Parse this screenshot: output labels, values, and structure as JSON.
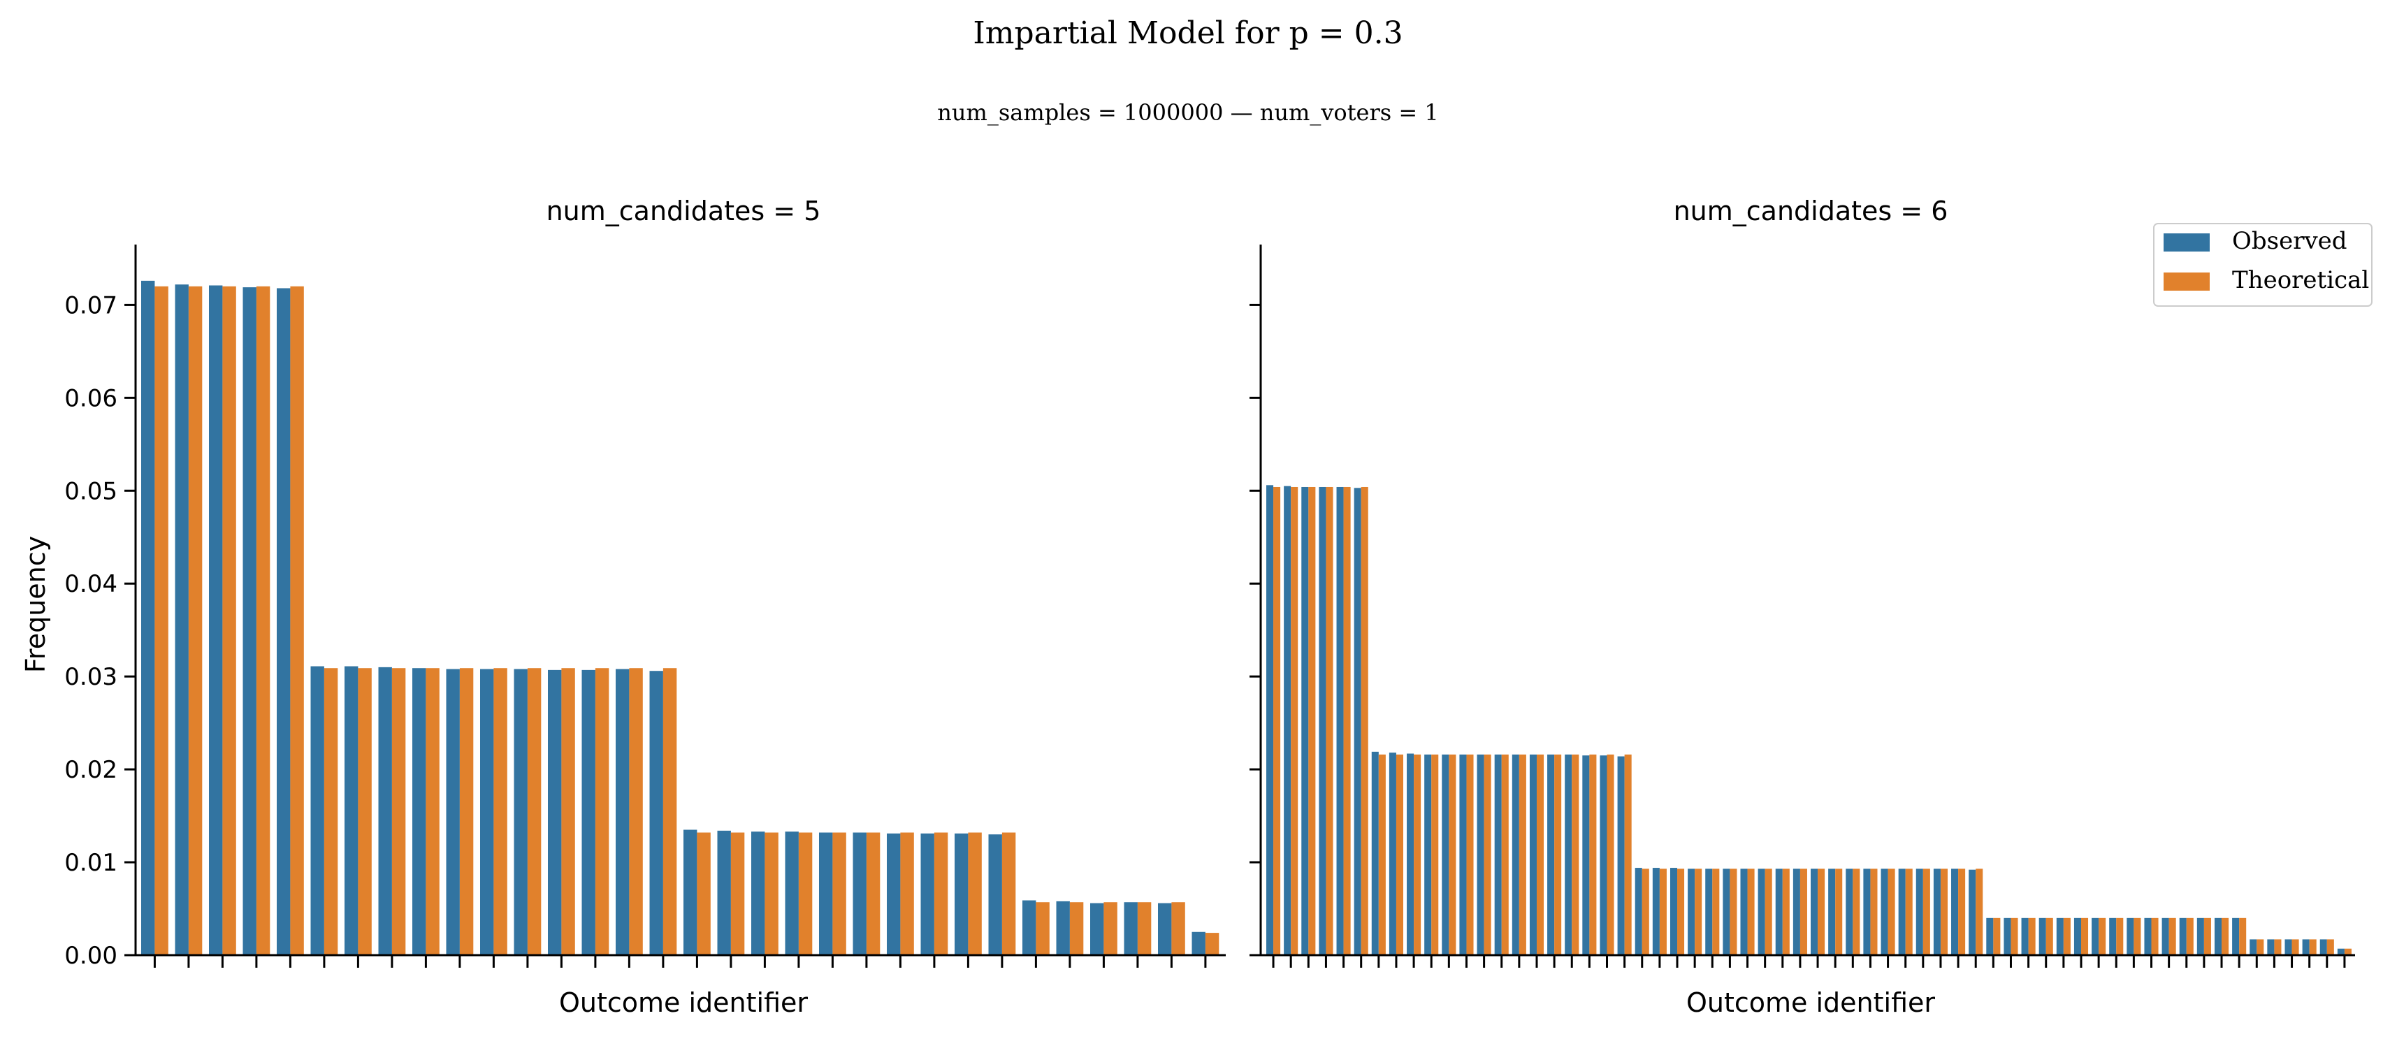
{
  "figure": {
    "title": "Impartial Model for p = 0.3",
    "subtitle": "num_samples = 1000000   —   num_voters = 1",
    "ylabel": "Frequency"
  },
  "legend": {
    "placement": "top-right",
    "items": [
      {
        "label": "Observed",
        "color": "#3274a1"
      },
      {
        "label": "Theoretical",
        "color": "#e1812c"
      }
    ]
  },
  "colors": {
    "observed": "#3274a1",
    "theoretical": "#e1812c",
    "axis": "#000000"
  },
  "chart_data": [
    {
      "type": "bar",
      "title": "num_candidates = 5",
      "xlabel": "Outcome identifier",
      "ylabel": "Frequency",
      "ylim": [
        0,
        0.0765
      ],
      "yticks": [
        0.0,
        0.01,
        0.02,
        0.03,
        0.04,
        0.05,
        0.06,
        0.07
      ],
      "ytick_labels": [
        "0.00",
        "0.01",
        "0.02",
        "0.03",
        "0.04",
        "0.05",
        "0.06",
        "0.07"
      ],
      "grid": false,
      "x_tick_labels_visible": false,
      "series": [
        {
          "name": "Observed",
          "values": [
            0.0726,
            0.0722,
            0.0721,
            0.0719,
            0.0718,
            0.0311,
            0.0311,
            0.031,
            0.0309,
            0.0308,
            0.0308,
            0.0308,
            0.0307,
            0.0307,
            0.0308,
            0.0306,
            0.0135,
            0.0134,
            0.0133,
            0.0133,
            0.0132,
            0.0132,
            0.0131,
            0.0131,
            0.0131,
            0.013,
            0.0059,
            0.0058,
            0.0056,
            0.0057,
            0.0056,
            0.0025
          ]
        },
        {
          "name": "Theoretical",
          "values": [
            0.072,
            0.072,
            0.072,
            0.072,
            0.072,
            0.0309,
            0.0309,
            0.0309,
            0.0309,
            0.0309,
            0.0309,
            0.0309,
            0.0309,
            0.0309,
            0.0309,
            0.0309,
            0.0132,
            0.0132,
            0.0132,
            0.0132,
            0.0132,
            0.0132,
            0.0132,
            0.0132,
            0.0132,
            0.0132,
            0.0057,
            0.0057,
            0.0057,
            0.0057,
            0.0057,
            0.0024
          ]
        }
      ]
    },
    {
      "type": "bar",
      "title": "num_candidates = 6",
      "xlabel": "Outcome identifier",
      "ylabel": "",
      "ylim": [
        0,
        0.0765
      ],
      "yticks": [
        0.0,
        0.01,
        0.02,
        0.03,
        0.04,
        0.05,
        0.06,
        0.07
      ],
      "ytick_labels": [],
      "grid": false,
      "x_tick_labels_visible": false,
      "series": [
        {
          "name": "Observed",
          "values": [
            0.0506,
            0.0505,
            0.0504,
            0.0504,
            0.0504,
            0.0503,
            0.0219,
            0.0218,
            0.0217,
            0.0216,
            0.0216,
            0.0216,
            0.0216,
            0.0216,
            0.0216,
            0.0216,
            0.0216,
            0.0216,
            0.0215,
            0.0215,
            0.0214,
            0.0094,
            0.0094,
            0.0094,
            0.0093,
            0.0093,
            0.0093,
            0.0093,
            0.0093,
            0.0093,
            0.0093,
            0.0093,
            0.0093,
            0.0093,
            0.0093,
            0.0093,
            0.0093,
            0.0093,
            0.0093,
            0.0093,
            0.0092,
            0.004,
            0.004,
            0.004,
            0.004,
            0.004,
            0.004,
            0.004,
            0.004,
            0.004,
            0.004,
            0.004,
            0.004,
            0.004,
            0.004,
            0.004,
            0.0017,
            0.0017,
            0.0017,
            0.0017,
            0.0017,
            0.0007
          ]
        },
        {
          "name": "Theoretical",
          "values": [
            0.0504,
            0.0504,
            0.0504,
            0.0504,
            0.0504,
            0.0504,
            0.0216,
            0.0216,
            0.0216,
            0.0216,
            0.0216,
            0.0216,
            0.0216,
            0.0216,
            0.0216,
            0.0216,
            0.0216,
            0.0216,
            0.0216,
            0.0216,
            0.0216,
            0.0093,
            0.0093,
            0.0093,
            0.0093,
            0.0093,
            0.0093,
            0.0093,
            0.0093,
            0.0093,
            0.0093,
            0.0093,
            0.0093,
            0.0093,
            0.0093,
            0.0093,
            0.0093,
            0.0093,
            0.0093,
            0.0093,
            0.0093,
            0.004,
            0.004,
            0.004,
            0.004,
            0.004,
            0.004,
            0.004,
            0.004,
            0.004,
            0.004,
            0.004,
            0.004,
            0.004,
            0.004,
            0.004,
            0.0017,
            0.0017,
            0.0017,
            0.0017,
            0.0017,
            0.0007
          ]
        }
      ]
    }
  ]
}
